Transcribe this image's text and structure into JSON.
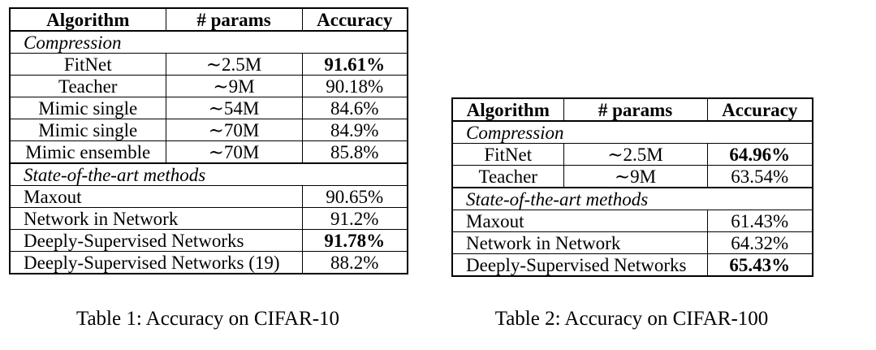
{
  "table1": {
    "header": [
      "Algorithm",
      "# params",
      "Accuracy"
    ],
    "sections": [
      {
        "title": "Compression",
        "rows": [
          {
            "algorithm": "FitNet",
            "params": "∼2.5M",
            "accuracy": "91.61%",
            "bold": true
          },
          {
            "algorithm": "Teacher",
            "params": "∼9M",
            "accuracy": "90.18%",
            "bold": false
          },
          {
            "algorithm": "Mimic single",
            "params": "∼54M",
            "accuracy": "84.6%",
            "bold": false
          },
          {
            "algorithm": "Mimic single",
            "params": "∼70M",
            "accuracy": "84.9%",
            "bold": false
          },
          {
            "algorithm": "Mimic ensemble",
            "params": "∼70M",
            "accuracy": "85.8%",
            "bold": false
          }
        ]
      },
      {
        "title": "State-of-the-art methods",
        "rows": [
          {
            "algorithm": "Maxout",
            "accuracy": "90.65%",
            "bold": false
          },
          {
            "algorithm": "Network in Network",
            "accuracy": "91.2%",
            "bold": false
          },
          {
            "algorithm": "Deeply-Supervised Networks",
            "accuracy": "91.78%",
            "bold": true
          },
          {
            "algorithm": "Deeply-Supervised Networks (19)",
            "accuracy": "88.2%",
            "bold": false
          }
        ]
      }
    ],
    "caption": "Table 1: Accuracy on CIFAR-10"
  },
  "table2": {
    "header": [
      "Algorithm",
      "# params",
      "Accuracy"
    ],
    "sections": [
      {
        "title": "Compression",
        "rows": [
          {
            "algorithm": "FitNet",
            "params": "∼2.5M",
            "accuracy": "64.96%",
            "bold": true
          },
          {
            "algorithm": "Teacher",
            "params": "∼9M",
            "accuracy": "63.54%",
            "bold": false
          }
        ]
      },
      {
        "title": "State-of-the-art methods",
        "rows": [
          {
            "algorithm": "Maxout",
            "accuracy": "61.43%",
            "bold": false
          },
          {
            "algorithm": "Network in Network",
            "accuracy": "64.32%",
            "bold": false
          },
          {
            "algorithm": "Deeply-Supervised Networks",
            "accuracy": "65.43%",
            "bold": true
          }
        ]
      }
    ],
    "caption": "Table 2: Accuracy on CIFAR-100"
  }
}
